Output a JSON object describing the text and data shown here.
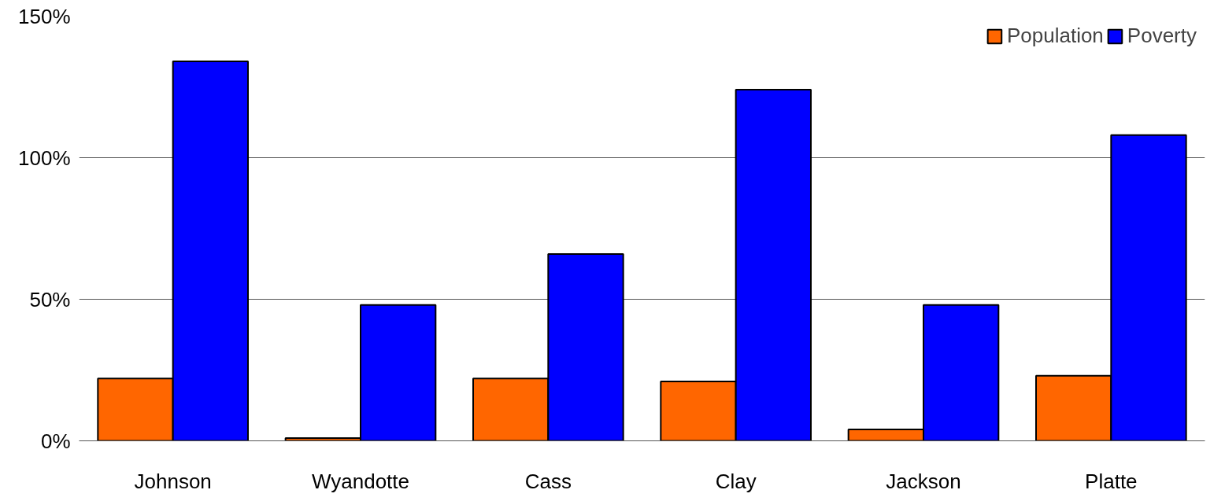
{
  "chart_data": {
    "type": "bar",
    "categories": [
      "Johnson",
      "Wyandotte",
      "Cass",
      "Clay",
      "Jackson",
      "Platte"
    ],
    "series": [
      {
        "name": "Population",
        "color": "#ff6600",
        "values": [
          22,
          1,
          22,
          21,
          4,
          23
        ]
      },
      {
        "name": "Poverty",
        "color": "#0000ff",
        "values": [
          134,
          48,
          66,
          124,
          48,
          108
        ]
      }
    ],
    "ylim": [
      0,
      150
    ],
    "yticks": [
      {
        "value": 0,
        "label": "0%"
      },
      {
        "value": 50,
        "label": "50%"
      },
      {
        "value": 100,
        "label": "100%"
      },
      {
        "value": 150,
        "label": "150%"
      }
    ],
    "grid": "y",
    "legend": "top right"
  }
}
